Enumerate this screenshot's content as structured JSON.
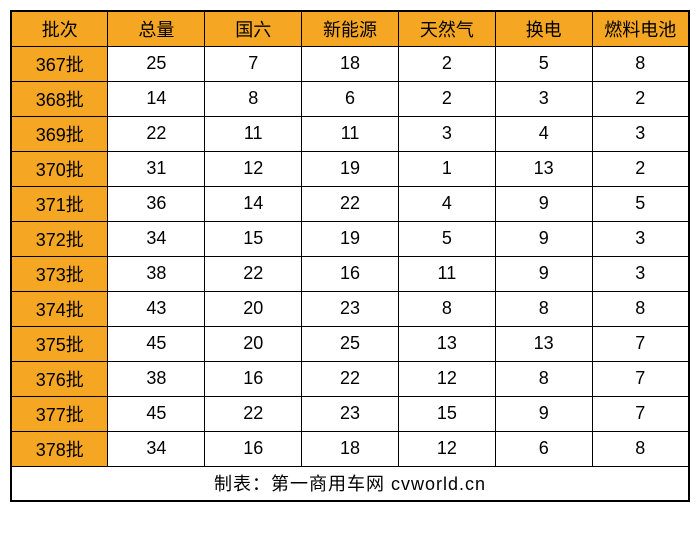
{
  "table": {
    "type": "table",
    "header_bg_color": "#f5a623",
    "batch_bg_color": "#f5a623",
    "data_bg_color": "#ffffff",
    "border_color": "#000000",
    "text_color": "#000000",
    "font_size": 18,
    "columns": [
      "批次",
      "总量",
      "国六",
      "新能源",
      "天然气",
      "换电",
      "燃料电池"
    ],
    "rows": [
      [
        "367批",
        "25",
        "7",
        "18",
        "2",
        "5",
        "8"
      ],
      [
        "368批",
        "14",
        "8",
        "6",
        "2",
        "3",
        "2"
      ],
      [
        "369批",
        "22",
        "11",
        "11",
        "3",
        "4",
        "3"
      ],
      [
        "370批",
        "31",
        "12",
        "19",
        "1",
        "13",
        "2"
      ],
      [
        "371批",
        "36",
        "14",
        "22",
        "4",
        "9",
        "5"
      ],
      [
        "372批",
        "34",
        "15",
        "19",
        "5",
        "9",
        "3"
      ],
      [
        "373批",
        "38",
        "22",
        "16",
        "11",
        "9",
        "3"
      ],
      [
        "374批",
        "43",
        "20",
        "23",
        "8",
        "8",
        "8"
      ],
      [
        "375批",
        "45",
        "20",
        "25",
        "13",
        "13",
        "7"
      ],
      [
        "376批",
        "38",
        "16",
        "22",
        "12",
        "8",
        "7"
      ],
      [
        "377批",
        "45",
        "22",
        "23",
        "15",
        "9",
        "7"
      ],
      [
        "378批",
        "34",
        "16",
        "18",
        "12",
        "6",
        "8"
      ]
    ],
    "footer_text": "制表：第一商用车网 cvworld.cn"
  }
}
